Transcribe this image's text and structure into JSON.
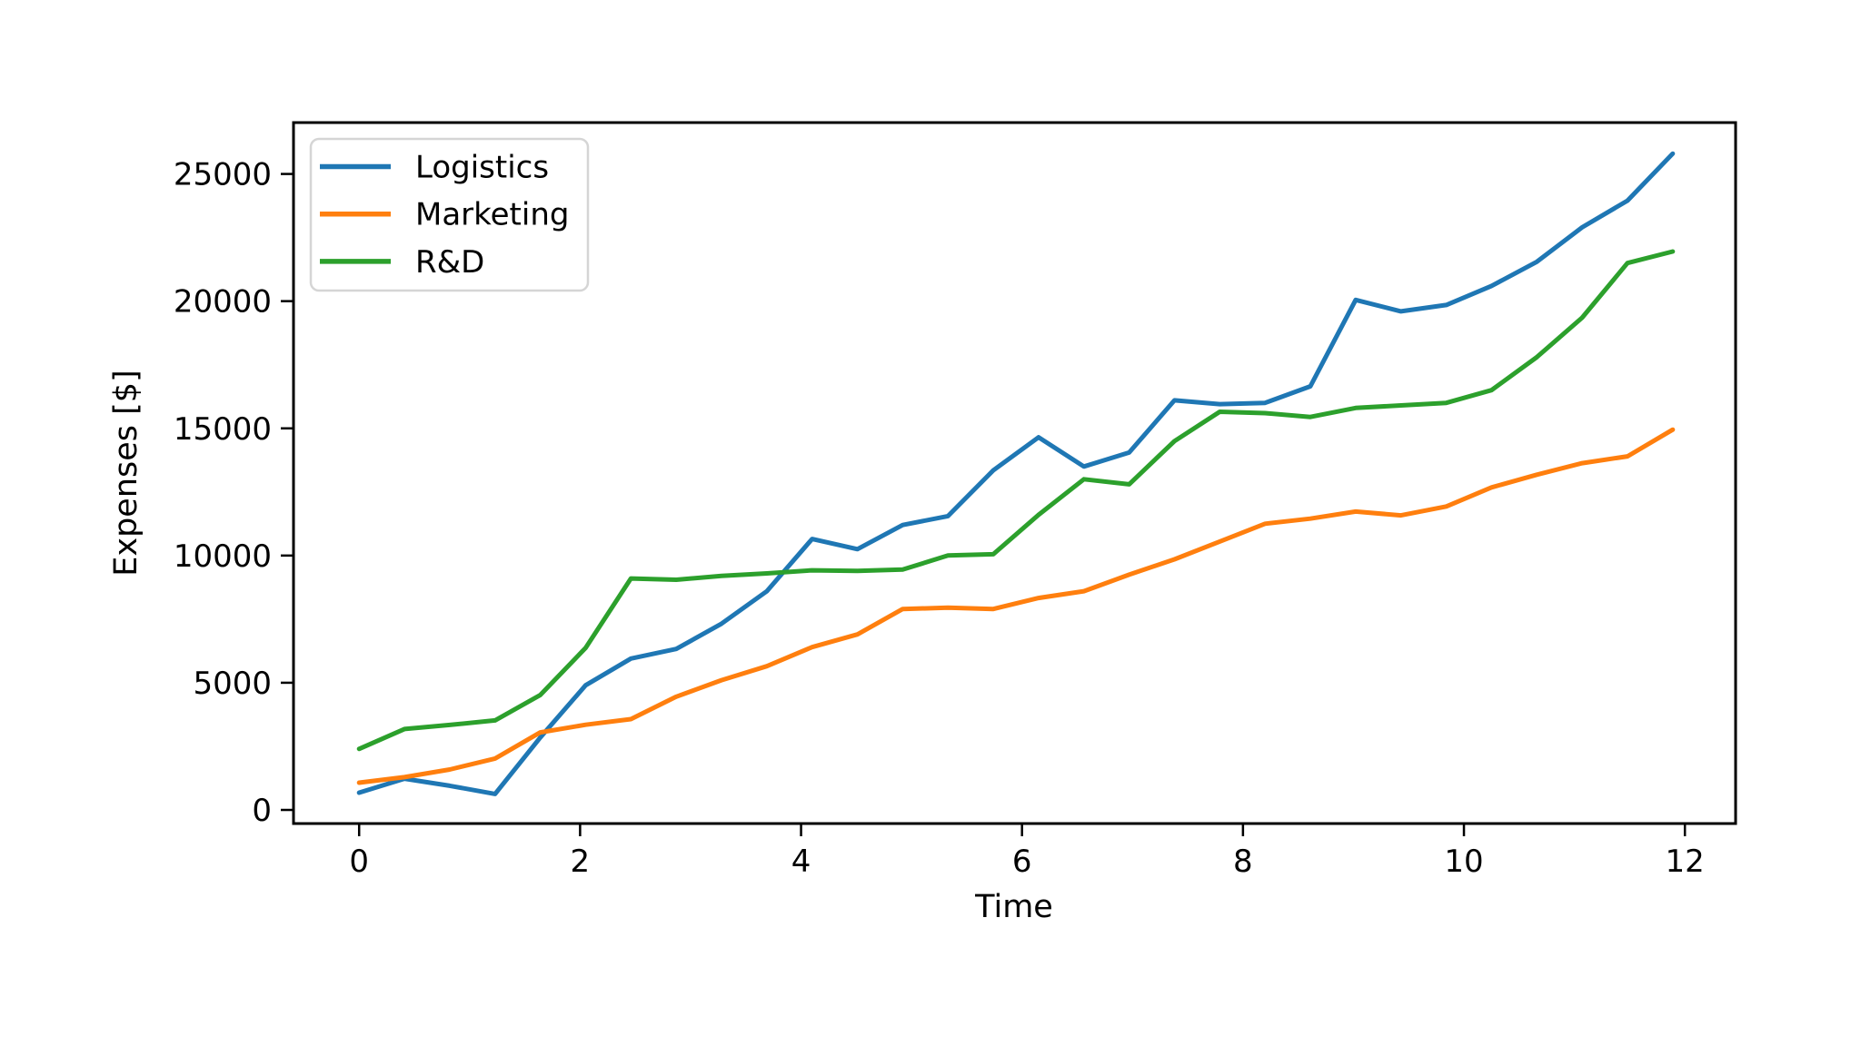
{
  "figure": {
    "background_color": "#ffffff",
    "spine_color": "#000000",
    "legend_border_color": "#d5d5d5",
    "legend_background": "#ffffff"
  },
  "chart_data": {
    "type": "line",
    "title": "",
    "xlabel": "Time",
    "ylabel": "Expenses [$]",
    "xlim": [
      -0.594,
      12.459
    ],
    "ylim": [
      -535,
      27020
    ],
    "x_ticks": [
      0,
      2,
      4,
      6,
      8,
      10,
      12
    ],
    "y_ticks": [
      0,
      5000,
      10000,
      15000,
      20000,
      25000
    ],
    "grid": false,
    "legend_position": "upper left",
    "x": [
      0,
      0.41,
      0.82,
      1.23,
      1.64,
      2.05,
      2.46,
      2.87,
      3.28,
      3.69,
      4.1,
      4.51,
      4.92,
      5.33,
      5.74,
      6.15,
      6.56,
      6.97,
      7.38,
      7.79,
      8.2,
      8.61,
      9.02,
      9.43,
      9.84,
      10.25,
      10.66,
      11.07,
      11.48,
      11.89
    ],
    "series": [
      {
        "name": "Logistics",
        "color": "#1f77b4",
        "values": [
          680,
          1230,
          950,
          630,
          2850,
          4900,
          5950,
          6330,
          7320,
          8600,
          10650,
          10250,
          11200,
          11550,
          13350,
          14650,
          13500,
          14050,
          16100,
          15950,
          16000,
          16650,
          20050,
          19600,
          19850,
          20600,
          21550,
          22900,
          23950,
          25800
        ]
      },
      {
        "name": "Marketing",
        "color": "#ff7f0e",
        "values": [
          1070,
          1290,
          1590,
          2020,
          3050,
          3350,
          3570,
          4450,
          5100,
          5650,
          6400,
          6900,
          7900,
          7950,
          7900,
          8330,
          8600,
          9250,
          9850,
          10550,
          11250,
          11450,
          11730,
          11580,
          11930,
          12680,
          13180,
          13630,
          13900,
          14950
        ]
      },
      {
        "name": "R&D",
        "color": "#2ca02c",
        "values": [
          2400,
          3180,
          3340,
          3520,
          4520,
          6370,
          9100,
          9050,
          9200,
          9300,
          9420,
          9400,
          9450,
          10000,
          10050,
          11600,
          13000,
          12800,
          14500,
          15650,
          15600,
          15450,
          15800,
          15900,
          16000,
          16500,
          17800,
          19350,
          21500,
          21950
        ]
      }
    ]
  }
}
